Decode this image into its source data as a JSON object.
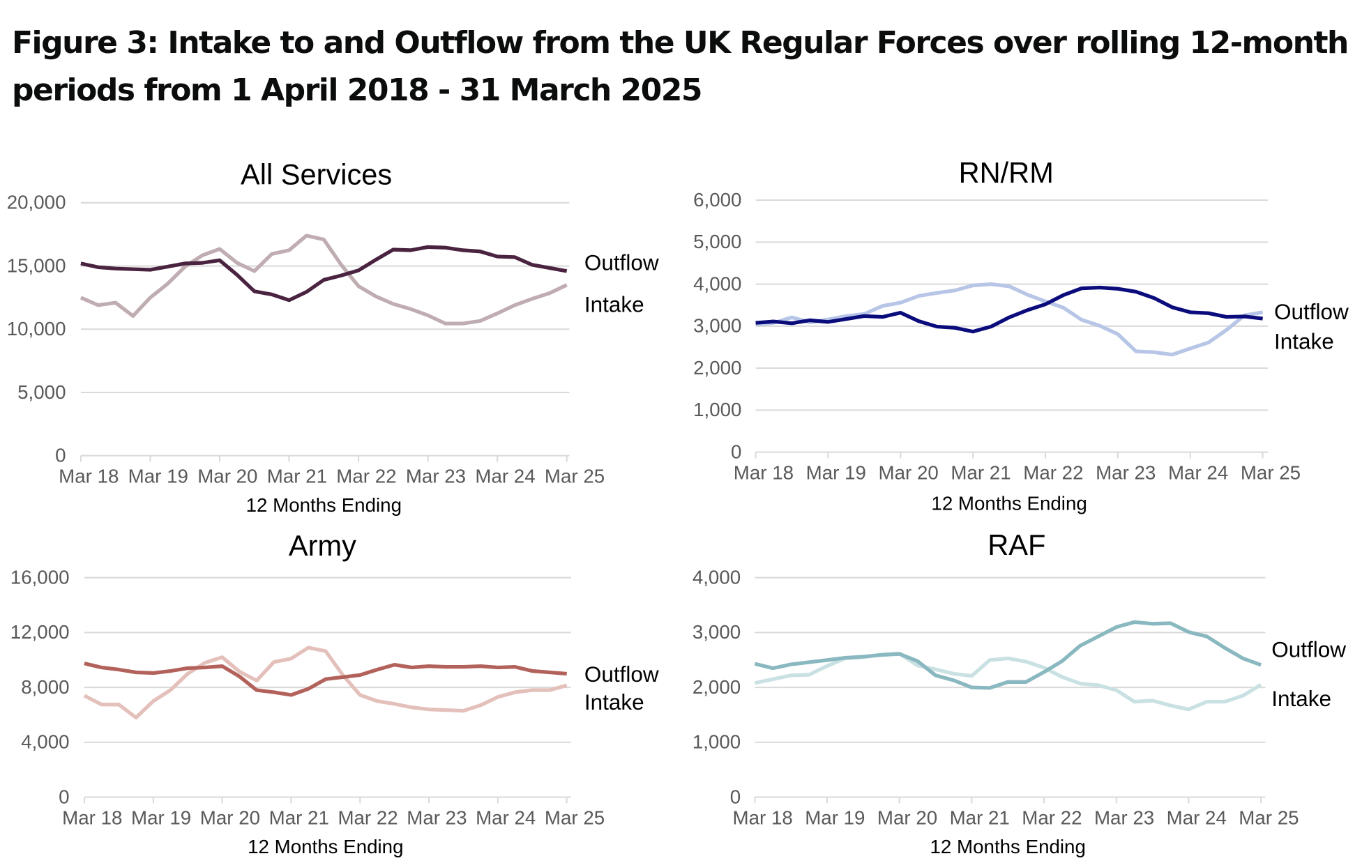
{
  "figure": {
    "title": "Figure 3: Intake to and Outflow from the UK Regular Forces over rolling 12-month periods from 1 April 2018 - 31 March 2025"
  },
  "chart_data": [
    {
      "type": "line",
      "title": "All Services",
      "xlabel": "12 Months Ending",
      "ylabel": "",
      "x_tick_labels": [
        "Mar 18",
        "Mar 19",
        "Mar 20",
        "Mar 21",
        "Mar 22",
        "Mar 23",
        "Mar 24",
        "Mar 25"
      ],
      "x_points_per_tick": 4,
      "ylim": [
        0,
        20000
      ],
      "y_ticks": [
        0,
        5000,
        10000,
        15000,
        20000
      ],
      "y_tick_labels": [
        "0",
        "5,000",
        "10,000",
        "15,000",
        "20,000"
      ],
      "grid": true,
      "legend": "direct labels at right end of lines",
      "series": [
        {
          "name": "Outflow",
          "color": "#4a2340",
          "label_value": 15300,
          "values": [
            15200,
            14900,
            14800,
            14750,
            14700,
            14950,
            15200,
            15250,
            15450,
            14300,
            13000,
            12750,
            12300,
            12950,
            13900,
            14250,
            14650,
            15500,
            16300,
            16250,
            16500,
            16450,
            16250,
            16150,
            15750,
            15700,
            15100,
            14850,
            14600
          ]
        },
        {
          "name": "Intake",
          "color": "#bfadb1",
          "label_value": 12000,
          "values": [
            12500,
            11900,
            12100,
            11050,
            12500,
            13600,
            14950,
            15850,
            16350,
            15250,
            14600,
            15950,
            16250,
            17400,
            17100,
            15100,
            13400,
            12600,
            12000,
            11600,
            11100,
            10450,
            10450,
            10650,
            11250,
            11900,
            12400,
            12850,
            13500
          ]
        }
      ]
    },
    {
      "type": "line",
      "title": "RN/RM",
      "xlabel": "12 Months Ending",
      "ylabel": "",
      "x_tick_labels": [
        "Mar 18",
        "Mar 19",
        "Mar 20",
        "Mar 21",
        "Mar 22",
        "Mar 23",
        "Mar 24",
        "Mar 25"
      ],
      "x_points_per_tick": 4,
      "ylim": [
        0,
        6000
      ],
      "y_ticks": [
        0,
        1000,
        2000,
        3000,
        4000,
        5000,
        6000
      ],
      "y_tick_labels": [
        "0",
        "1,000",
        "2,000",
        "3,000",
        "4,000",
        "5,000",
        "6,000"
      ],
      "grid": true,
      "legend": "direct labels at right end of lines",
      "series": [
        {
          "name": "Outflow",
          "color": "#0b0c7c",
          "label_value": 3350,
          "values": [
            3080,
            3110,
            3070,
            3140,
            3100,
            3170,
            3240,
            3220,
            3320,
            3120,
            2990,
            2960,
            2870,
            2990,
            3210,
            3380,
            3520,
            3740,
            3900,
            3920,
            3890,
            3820,
            3670,
            3450,
            3330,
            3310,
            3220,
            3230,
            3180
          ]
        },
        {
          "name": "Intake",
          "color": "#b7c5e6",
          "label_value": 2650,
          "values": [
            3040,
            3080,
            3210,
            3090,
            3160,
            3240,
            3290,
            3480,
            3560,
            3720,
            3790,
            3850,
            3970,
            4000,
            3950,
            3750,
            3590,
            3440,
            3150,
            3010,
            2810,
            2400,
            2380,
            2320,
            2470,
            2610,
            2910,
            3260,
            3330
          ]
        }
      ]
    },
    {
      "type": "line",
      "title": "Army",
      "xlabel": "12 Months Ending",
      "ylabel": "",
      "x_tick_labels": [
        "Mar 18",
        "Mar 19",
        "Mar 20",
        "Mar 21",
        "Mar 22",
        "Mar 23",
        "Mar 24",
        "Mar 25"
      ],
      "x_points_per_tick": 4,
      "ylim": [
        0,
        16000
      ],
      "y_ticks": [
        0,
        4000,
        8000,
        12000,
        16000
      ],
      "y_tick_labels": [
        "0",
        "4,000",
        "8,000",
        "12,000",
        "16,000"
      ],
      "grid": true,
      "legend": "direct labels at right end of lines",
      "series": [
        {
          "name": "Outflow",
          "color": "#b3625b",
          "label_value": 9000,
          "values": [
            9750,
            9450,
            9300,
            9100,
            9050,
            9200,
            9400,
            9450,
            9550,
            8800,
            7800,
            7650,
            7450,
            7900,
            8600,
            8750,
            8900,
            9300,
            9650,
            9450,
            9550,
            9500,
            9500,
            9550,
            9450,
            9500,
            9200,
            9100,
            9000
          ]
        },
        {
          "name": "Intake",
          "color": "#e4c0bb",
          "label_value": 6950,
          "values": [
            7400,
            6750,
            6750,
            5800,
            7000,
            7800,
            9000,
            9800,
            10200,
            9150,
            8500,
            9850,
            10100,
            10900,
            10650,
            8900,
            7450,
            7000,
            6800,
            6550,
            6400,
            6350,
            6300,
            6700,
            7300,
            7650,
            7800,
            7800,
            8150
          ]
        }
      ]
    },
    {
      "type": "line",
      "title": "RAF",
      "xlabel": "12 Months Ending",
      "ylabel": "",
      "x_tick_labels": [
        "Mar 18",
        "Mar 19",
        "Mar 20",
        "Mar 21",
        "Mar 22",
        "Mar 23",
        "Mar 24",
        "Mar 25"
      ],
      "x_points_per_tick": 4,
      "ylim": [
        0,
        4000
      ],
      "y_ticks": [
        0,
        1000,
        2000,
        3000,
        4000
      ],
      "y_tick_labels": [
        "0",
        "1,000",
        "2,000",
        "3,000",
        "4,000"
      ],
      "grid": true,
      "legend": "direct labels at right end of lines",
      "series": [
        {
          "name": "Outflow",
          "color": "#8ab8c0",
          "label_value": 2700,
          "values": [
            2430,
            2350,
            2420,
            2460,
            2500,
            2540,
            2560,
            2590,
            2610,
            2480,
            2220,
            2130,
            2000,
            1990,
            2100,
            2100,
            2280,
            2480,
            2760,
            2930,
            3100,
            3190,
            3160,
            3170,
            3010,
            2930,
            2720,
            2530,
            2410
          ]
        },
        {
          "name": "Intake",
          "color": "#c9e1e3",
          "label_value": 1800,
          "values": [
            2080,
            2150,
            2220,
            2230,
            2390,
            2530,
            2550,
            2600,
            2620,
            2400,
            2330,
            2250,
            2210,
            2500,
            2530,
            2470,
            2360,
            2190,
            2070,
            2040,
            1950,
            1740,
            1760,
            1670,
            1600,
            1740,
            1740,
            1850,
            2050
          ]
        }
      ]
    }
  ]
}
